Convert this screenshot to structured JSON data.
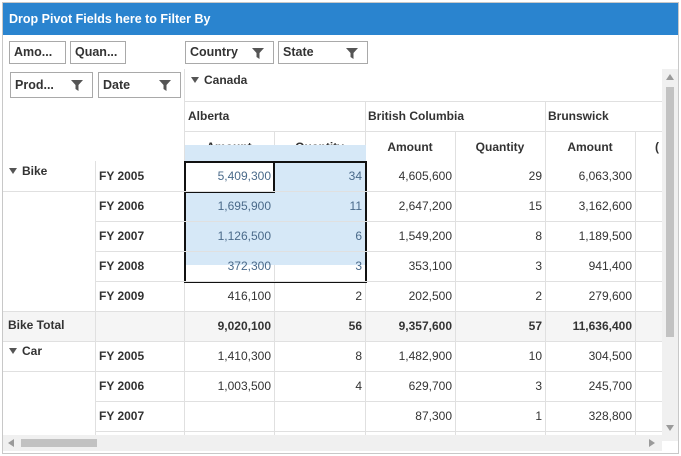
{
  "filter_area": {
    "title": "Drop Pivot Fields here to Filter By"
  },
  "data_fields": [
    {
      "label": "Amo..."
    },
    {
      "label": "Quan..."
    }
  ],
  "column_fields": [
    {
      "label": "Country"
    },
    {
      "label": "State"
    }
  ],
  "row_fields": [
    {
      "label": "Prod..."
    },
    {
      "label": "Date"
    }
  ],
  "country_header": "Canada",
  "states": [
    "Alberta",
    "British Columbia",
    "Brunswick"
  ],
  "measure_headers": [
    "Amount",
    "Quantity",
    "Amount",
    "Quantity",
    "Amount"
  ],
  "partial_col_char": "(",
  "rows": [
    {
      "product": "Bike",
      "year": "FY 2005",
      "values": [
        "5,409,300",
        "34",
        "4,605,600",
        "29",
        "6,063,300"
      ]
    },
    {
      "product": "",
      "year": "FY 2006",
      "values": [
        "1,695,900",
        "11",
        "2,647,200",
        "15",
        "3,162,600"
      ]
    },
    {
      "product": "",
      "year": "FY 2007",
      "values": [
        "1,126,500",
        "6",
        "1,549,200",
        "8",
        "1,189,500"
      ]
    },
    {
      "product": "",
      "year": "FY 2008",
      "values": [
        "372,300",
        "3",
        "353,100",
        "3",
        "941,400"
      ]
    },
    {
      "product": "",
      "year": "FY 2009",
      "values": [
        "416,100",
        "2",
        "202,500",
        "2",
        "279,600"
      ]
    },
    {
      "total": "Bike Total",
      "values": [
        "9,020,100",
        "56",
        "9,357,600",
        "57",
        "11,636,400"
      ]
    },
    {
      "product": "Car",
      "year": "FY 2005",
      "values": [
        "1,410,300",
        "8",
        "1,482,900",
        "10",
        "304,500"
      ]
    },
    {
      "product": "",
      "year": "FY 2006",
      "values": [
        "1,003,500",
        "4",
        "629,700",
        "3",
        "245,700"
      ]
    },
    {
      "product": "",
      "year": "FY 2007",
      "values": [
        "",
        "",
        "87,300",
        "1",
        "328,800"
      ]
    }
  ],
  "icons": {
    "filter": "funnel-icon",
    "expand": "caret-down-icon"
  },
  "colors": {
    "titlebar": "#2a84cf",
    "selection": "#d6e8f7"
  }
}
